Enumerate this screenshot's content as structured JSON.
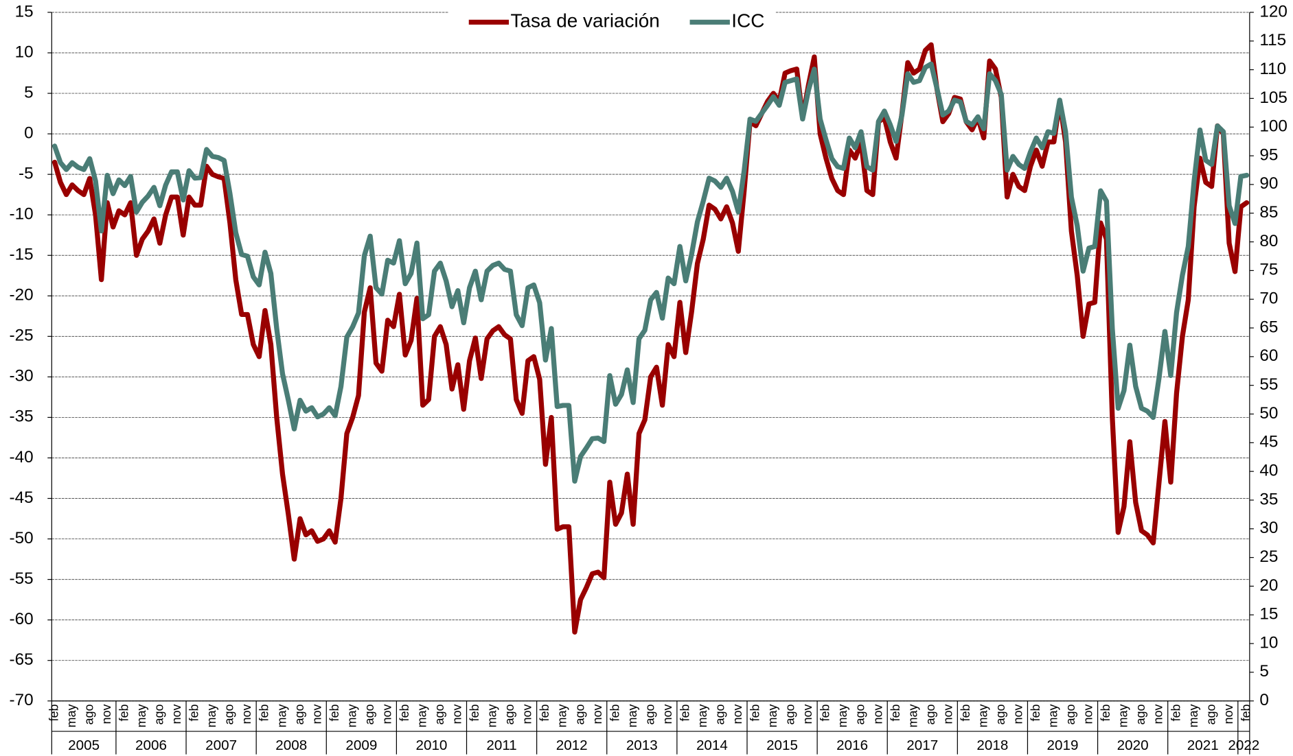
{
  "chart_data": {
    "type": "line",
    "categories": [
      "feb",
      null,
      null,
      "may",
      null,
      null,
      "ago",
      null,
      null,
      "nov",
      null,
      null,
      "feb",
      null,
      null,
      "may",
      null,
      null,
      "ago",
      null,
      null,
      "nov",
      null,
      null,
      "feb",
      null,
      null,
      "may",
      null,
      null,
      "ago",
      null,
      null,
      "nov",
      null,
      null,
      "feb",
      null,
      null,
      "may",
      null,
      null,
      "ago",
      null,
      null,
      "nov",
      null,
      null,
      "feb",
      null,
      null,
      "may",
      null,
      null,
      "ago",
      null,
      null,
      "nov",
      null,
      null,
      "feb",
      null,
      null,
      "may",
      null,
      null,
      "ago",
      null,
      null,
      "nov",
      null,
      null,
      "feb",
      null,
      null,
      "may",
      null,
      null,
      "ago",
      null,
      null,
      "nov",
      null,
      null,
      "feb",
      null,
      null,
      "may",
      null,
      null,
      "ago",
      null,
      null,
      "nov",
      null,
      null,
      "feb",
      null,
      null,
      "may",
      null,
      null,
      "ago",
      null,
      null,
      "nov",
      null,
      null,
      "feb",
      null,
      null,
      "may",
      null,
      null,
      "ago",
      null,
      null,
      "nov",
      null,
      null,
      "feb",
      null,
      null,
      "may",
      null,
      null,
      "ago",
      null,
      null,
      "nov",
      null,
      null,
      "feb",
      null,
      null,
      "may",
      null,
      null,
      "ago",
      null,
      null,
      "nov",
      null,
      null,
      "feb",
      null,
      null,
      "may",
      null,
      null,
      "ago",
      null,
      null,
      "nov",
      null,
      null,
      "feb",
      null,
      null,
      "may",
      null,
      null,
      "ago",
      null,
      null,
      "nov",
      null,
      null,
      "feb",
      null,
      null,
      "may",
      null,
      null,
      "ago",
      null,
      null,
      "nov",
      null,
      null,
      "feb",
      null,
      null,
      "may",
      null,
      null,
      "ago",
      null,
      null,
      "nov",
      null,
      null,
      "feb",
      null,
      null,
      "may",
      null,
      null,
      "ago",
      null,
      null,
      "nov",
      null,
      null,
      "feb"
    ],
    "years": [
      "2005",
      "2006",
      "2007",
      "2008",
      "2009",
      "2010",
      "2011",
      "2012",
      "2013",
      "2014",
      "2015",
      "2016",
      "2017",
      "2018",
      "2019",
      "2020",
      "2021",
      "2022"
    ],
    "series": [
      {
        "name": "Tasa de variación",
        "color": "#990000",
        "axis": "y",
        "values": [
          -3.5,
          -6,
          -7.5,
          -6.3,
          -7,
          -7.5,
          -5.5,
          -10,
          -18,
          -8.5,
          -11.5,
          -9.5,
          -10,
          -8.5,
          -15,
          -13,
          -12,
          -10.5,
          -13.5,
          -10,
          -7.8,
          -7.8,
          -12.5,
          -7.8,
          -8.8,
          -8.8,
          -4,
          -5,
          -5.3,
          -5.5,
          -11,
          -18,
          -22.3,
          -22.3,
          -26,
          -27.5,
          -21.8,
          -26,
          -35,
          -42,
          -47,
          -52.5,
          -47.5,
          -49.5,
          -49,
          -50.3,
          -50,
          -49,
          -50.4,
          -45,
          -37,
          -35,
          -32.3,
          -22,
          -19,
          -28.3,
          -29.3,
          -23,
          -23.8,
          -19.8,
          -27.3,
          -25.5,
          -20.3,
          -33.5,
          -32.8,
          -25,
          -23.8,
          -26,
          -31.5,
          -28.5,
          -34,
          -28,
          -25.2,
          -30.2,
          -25.3,
          -24.3,
          -23.8,
          -24.8,
          -25.3,
          -32.8,
          -34.5,
          -28,
          -27.5,
          -30.3,
          -40.8,
          -35,
          -48.8,
          -48.5,
          -48.5,
          -61.5,
          -57.5,
          -56,
          -54.3,
          -54.1,
          -54.8,
          -43,
          -48.2,
          -46.8,
          -42,
          -48.2,
          -37,
          -35.3,
          -30,
          -28.8,
          -33.5,
          -26,
          -27.5,
          -20.8,
          -27,
          -22,
          -16,
          -13,
          -8.8,
          -9.3,
          -10.5,
          -9,
          -11,
          -14.5,
          -7,
          1.5,
          1,
          2.5,
          4,
          5,
          4,
          7.5,
          7.8,
          8,
          2,
          6,
          9.5,
          0,
          -3,
          -5.5,
          -7,
          -7.5,
          -2,
          -3,
          -1,
          -7,
          -7.5,
          1.5,
          2,
          -1,
          -3,
          2.5,
          8.8,
          7.5,
          8,
          10.3,
          11,
          5.5,
          1.5,
          2.5,
          4.5,
          4.3,
          1.5,
          0.5,
          2,
          -0.5,
          9,
          8,
          4.5,
          -7.8,
          -5,
          -6.5,
          -7,
          -4,
          -2,
          -4,
          -1,
          -1,
          4,
          -1,
          -12,
          -17.5,
          -25,
          -21,
          -20.8,
          -11,
          -13,
          -35,
          -49.2,
          -46,
          -38,
          -45.5,
          -49,
          -49.5,
          -50.5,
          -43,
          -35.5,
          -43,
          -32,
          -25,
          -20.5,
          -9,
          -3,
          -6,
          -6.5,
          1,
          0,
          -13.5,
          -17,
          -9,
          -8.5
        ]
      },
      {
        "name": "ICC",
        "color": "#4a7d76",
        "axis": "y2",
        "values": [
          96.7,
          93.8,
          92.6,
          93.8,
          93,
          92.6,
          94.5,
          90.6,
          81.9,
          91.6,
          88.4,
          90.8,
          89.8,
          91.4,
          85.2,
          86.9,
          88,
          89.5,
          86.3,
          89.9,
          92.2,
          92.2,
          87.3,
          92.4,
          91.1,
          91.2,
          96.1,
          94.9,
          94.7,
          94.2,
          88.4,
          81.6,
          77.8,
          77.5,
          73.9,
          72.5,
          78.2,
          74.5,
          64.9,
          57,
          52.4,
          47.4,
          52.4,
          50.5,
          51.1,
          49.5,
          50,
          51.1,
          49.7,
          54.8,
          63.4,
          65.2,
          67.6,
          77.6,
          81,
          72,
          70.9,
          76.8,
          76.3,
          80.2,
          72.7,
          74.5,
          79.8,
          66.6,
          67.3,
          74.9,
          76.3,
          73.2,
          68.7,
          71.5,
          65.9,
          72,
          74.9,
          69.9,
          74.9,
          75.9,
          76.3,
          75.2,
          74.9,
          67.3,
          65.4,
          72,
          72.5,
          69.4,
          59.4,
          64.9,
          51.3,
          51.5,
          51.5,
          38.3,
          42.6,
          44.1,
          45.7,
          45.8,
          45.2,
          56.7,
          51.7,
          53.4,
          57.7,
          52,
          63.1,
          64.6,
          69.9,
          71.2,
          66.7,
          73.7,
          72.7,
          79.2,
          73.2,
          77.8,
          83.5,
          87.1,
          91.1,
          90.6,
          89.5,
          91.1,
          88.8,
          85.2,
          92.4,
          101.4,
          101,
          102.4,
          103.8,
          105.3,
          103.8,
          107.8,
          108.1,
          108.4,
          101.4,
          106.4,
          110.1,
          101.4,
          97.8,
          94.5,
          93.1,
          92.8,
          98.1,
          96.4,
          99.2,
          93.1,
          92.5,
          101,
          102.8,
          100.4,
          97.5,
          102.1,
          109.3,
          107.8,
          108.1,
          110.4,
          111,
          106.7,
          102.1,
          102.8,
          104.7,
          104.4,
          101,
          100.4,
          101.8,
          99.7,
          109.3,
          108.1,
          105.7,
          92.5,
          94.9,
          93.5,
          92.8,
          95.7,
          98.1,
          96.4,
          99.2,
          98.9,
          104.7,
          99.2,
          87.8,
          82.8,
          74.9,
          78.9,
          79.2,
          88.9,
          87.1,
          64.9,
          51,
          54.1,
          62,
          54.8,
          51,
          50.5,
          49.4,
          56.3,
          64.4,
          56.7,
          67.7,
          74.2,
          79.2,
          90.6,
          99.5,
          94.2,
          93.5,
          100.2,
          99.2,
          86.3,
          83.2,
          91.4,
          91.6
        ]
      }
    ],
    "ylim": [
      -70,
      15
    ],
    "yticks": [
      15,
      10,
      5,
      0,
      -5,
      -10,
      -15,
      -20,
      -25,
      -30,
      -35,
      -40,
      -45,
      -50,
      -55,
      -60,
      -65,
      -70
    ],
    "y2lim": [
      0,
      120
    ],
    "y2ticks": [
      120,
      115,
      110,
      105,
      100,
      95,
      90,
      85,
      80,
      75,
      70,
      65,
      60,
      55,
      50,
      45,
      40,
      35,
      30,
      25,
      20,
      15,
      10,
      5,
      0
    ],
    "negative_tick_color": "#e00000",
    "grid": true,
    "legend": "top"
  }
}
